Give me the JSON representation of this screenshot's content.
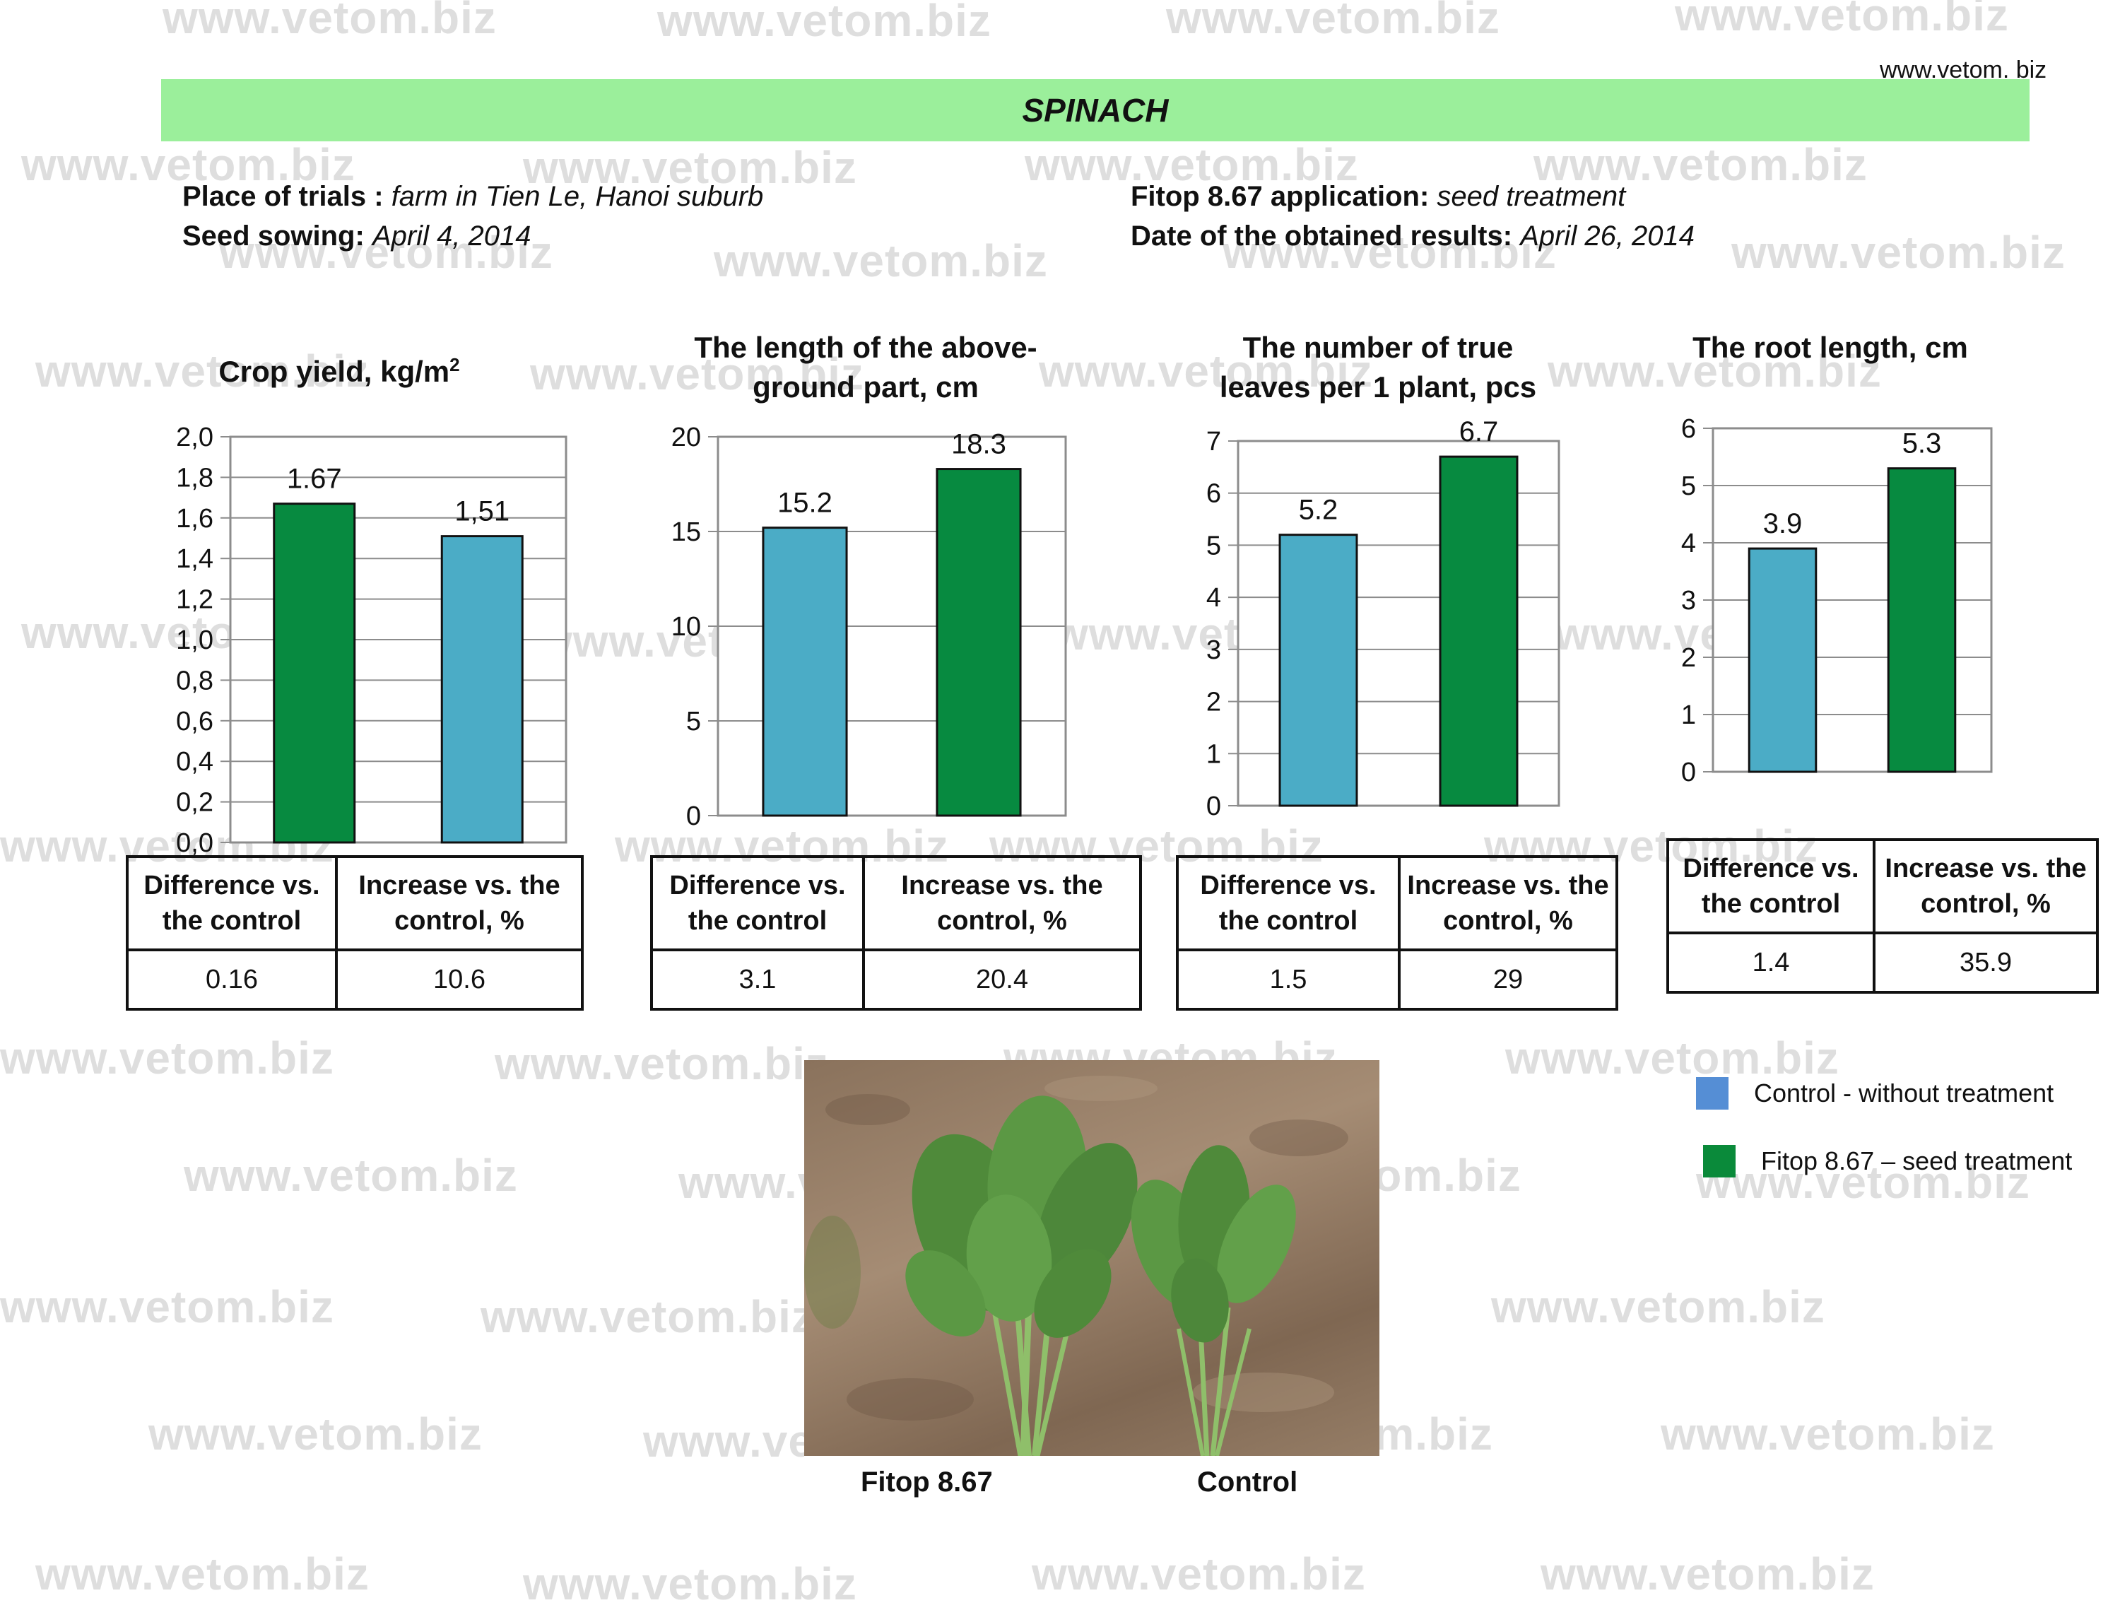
{
  "site_url": "www.vetom. biz",
  "title": "SPINACH",
  "watermark_text": "www.vetom.biz",
  "info": {
    "place_label": "Place of trials :",
    "place_value": "farm in Tien Le, Hanoi suburb",
    "sowing_label": "Seed sowing:",
    "sowing_value": "April 4, 2014",
    "application_label": "Fitop 8.67 application:",
    "application_value": "seed treatment",
    "results_label": "Date of the obtained results:",
    "results_value": "April 26, 2014"
  },
  "colors": {
    "control": "#4bacc6",
    "fitop": "#078a40",
    "band": "#9bef9b",
    "legend_control": "#558ed5",
    "legend_fitop": "#0a8a3a"
  },
  "chart_data": [
    {
      "type": "bar",
      "title": "Crop yield, kg/m",
      "title_sup": "2",
      "categories": [
        "Fitop 8.67 – seed treatment",
        "Control - without treatment"
      ],
      "values": [
        1.67,
        1.51
      ],
      "colors": [
        "#078a40",
        "#4bacc6"
      ],
      "data_labels": [
        "1.67",
        "1,51"
      ],
      "ylim": [
        0,
        2.0
      ],
      "yticks": [
        0,
        0.2,
        0.4,
        0.6,
        0.8,
        1.0,
        1.2,
        1.4,
        1.6,
        1.8,
        2.0
      ],
      "ytick_labels": [
        "0,0",
        "0,2",
        "0,4",
        "0,6",
        "0,8",
        "1,0",
        "1,2",
        "1,4",
        "1,6",
        "1,8",
        "2,0"
      ],
      "grid": true,
      "table": {
        "headers": [
          "Difference vs. the control",
          "Increase vs. the control, %"
        ],
        "values": [
          "0.16",
          "10.6"
        ]
      }
    },
    {
      "type": "bar",
      "title": "The length of the above-ground part, cm",
      "categories": [
        "Control - without treatment",
        "Fitop 8.67 – seed treatment"
      ],
      "values": [
        15.2,
        18.3
      ],
      "colors": [
        "#4bacc6",
        "#078a40"
      ],
      "data_labels": [
        "15.2",
        "18.3"
      ],
      "ylim": [
        0,
        20
      ],
      "yticks": [
        0,
        5,
        10,
        15,
        20
      ],
      "ytick_labels": [
        "0",
        "5",
        "10",
        "15",
        "20"
      ],
      "grid": true,
      "table": {
        "headers": [
          "Difference vs. the control",
          "Increase vs. the control, %"
        ],
        "values": [
          "3.1",
          "20.4"
        ]
      }
    },
    {
      "type": "bar",
      "title": "The number of true leaves per 1 plant, pcs",
      "categories": [
        "Control - without treatment",
        "Fitop 8.67 – seed treatment"
      ],
      "values": [
        5.2,
        6.7
      ],
      "colors": [
        "#4bacc6",
        "#078a40"
      ],
      "data_labels": [
        "5.2",
        "6.7"
      ],
      "ylim": [
        0,
        7
      ],
      "yticks": [
        0,
        1,
        2,
        3,
        4,
        5,
        6,
        7
      ],
      "ytick_labels": [
        "0",
        "1",
        "2",
        "3",
        "4",
        "5",
        "6",
        "7"
      ],
      "grid": true,
      "table": {
        "headers": [
          "Difference vs. the control",
          "Increase vs. the control, %"
        ],
        "values": [
          "1.5",
          "29"
        ]
      }
    },
    {
      "type": "bar",
      "title": "The root length, cm",
      "categories": [
        "Control - without treatment",
        "Fitop 8.67 – seed treatment"
      ],
      "values": [
        3.9,
        5.3
      ],
      "colors": [
        "#4bacc6",
        "#078a40"
      ],
      "data_labels": [
        "3.9",
        "5.3"
      ],
      "ylim": [
        0,
        6
      ],
      "yticks": [
        0,
        1,
        2,
        3,
        4,
        5,
        6
      ],
      "ytick_labels": [
        "0",
        "1",
        "2",
        "3",
        "4",
        "5",
        "6"
      ],
      "grid": true,
      "table": {
        "headers": [
          "Difference vs. the control",
          "Increase vs. the control, %"
        ],
        "values": [
          "1.4",
          "35.9"
        ]
      }
    }
  ],
  "legend": {
    "control_label": "Control - without treatment",
    "fitop_label": "Fitop 8.67 – seed treatment"
  },
  "photo": {
    "left_caption": "Fitop 8.67",
    "right_caption": "Control"
  }
}
